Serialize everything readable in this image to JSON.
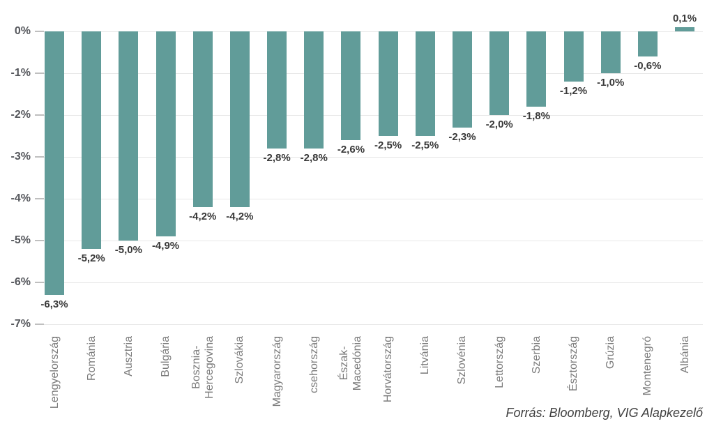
{
  "chart_data": {
    "type": "bar",
    "title": "",
    "xlabel": "",
    "ylabel": "",
    "categories": [
      "Lengyelország",
      "Románia",
      "Ausztria",
      "Bulgária",
      "Bosznia-\nHercegovina",
      "Szlovákia",
      "Magyarország",
      "csehország",
      "Észak-\nMacedónia",
      "Horvátország",
      "Litvánia",
      "Szlovénia",
      "Lettország",
      "Szerbia",
      "Észtország",
      "Grúzia",
      "Montenegró",
      "Albánia"
    ],
    "values": [
      -6.3,
      -5.2,
      -5.0,
      -4.9,
      -4.2,
      -4.2,
      -2.8,
      -2.8,
      -2.6,
      -2.5,
      -2.5,
      -2.3,
      -2.0,
      -1.8,
      -1.2,
      -1.0,
      -0.6,
      0.1
    ],
    "value_labels": [
      "-6,3%",
      "-5,2%",
      "-5,0%",
      "-4,9%",
      "-4,2%",
      "-4,2%",
      "-2,8%",
      "-2,8%",
      "-2,6%",
      "-2,5%",
      "-2,5%",
      "-2,3%",
      "-2,0%",
      "-1,8%",
      "-1,2%",
      "-1,0%",
      "-0,6%",
      "0,1%"
    ],
    "y_ticks": [
      "0%",
      "-1%",
      "-2%",
      "-3%",
      "-4%",
      "-5%",
      "-6%",
      "-7%"
    ],
    "y_tick_values": [
      0,
      -1,
      -2,
      -3,
      -4,
      -5,
      -6,
      -7
    ],
    "ylim": [
      -7,
      0.5
    ],
    "grid": true,
    "legend_position": "none",
    "y_axis_side": "left",
    "bar_color": "#619c99"
  },
  "source_note": "Forrás: Bloomberg, VIG Alapkezelő",
  "colors": {
    "background": "#ffffff",
    "bar": "#619c99",
    "grid": "#e7e7e7",
    "tick": "#bfbfbf",
    "value_label": "#393939",
    "axis_label": "#55575c",
    "category_label": "#7b7b7b",
    "source": "#3f3f3f"
  }
}
